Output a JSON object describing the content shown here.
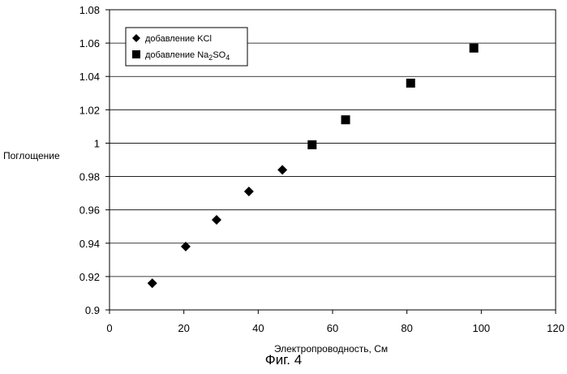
{
  "caption": "Фиг. 4",
  "chart_data": {
    "type": "scatter",
    "title": "",
    "xlabel": "Электропроводность, См",
    "ylabel": "Поглощение",
    "xlim": [
      0,
      120
    ],
    "ylim": [
      0.9,
      1.08
    ],
    "x_ticks": [
      "0",
      "20",
      "40",
      "60",
      "80",
      "100",
      "120"
    ],
    "y_ticks": [
      "0.9",
      "0.92",
      "0.94",
      "0.96",
      "0.98",
      "1",
      "1.02",
      "1.04",
      "1.06",
      "1.08"
    ],
    "grid": "horizontal",
    "legend_position": "top-left",
    "series": [
      {
        "name": "добавление KCl",
        "legend_label": "добавление KCl",
        "marker": "diamond",
        "color": "#000000",
        "points": [
          [
            11.5,
            0.916
          ],
          [
            20.5,
            0.938
          ],
          [
            28.8,
            0.954
          ],
          [
            37.5,
            0.971
          ],
          [
            46.5,
            0.984
          ]
        ]
      },
      {
        "name": "добавление Na2SO4",
        "legend_label": "добавление Na",
        "legend_sub": "2",
        "legend_label_mid": "SO",
        "legend_sub2": "4",
        "marker": "square",
        "color": "#000000",
        "points": [
          [
            54.5,
            0.999
          ],
          [
            63.5,
            1.014
          ],
          [
            81.0,
            1.036
          ],
          [
            98.0,
            1.057
          ]
        ]
      }
    ]
  }
}
